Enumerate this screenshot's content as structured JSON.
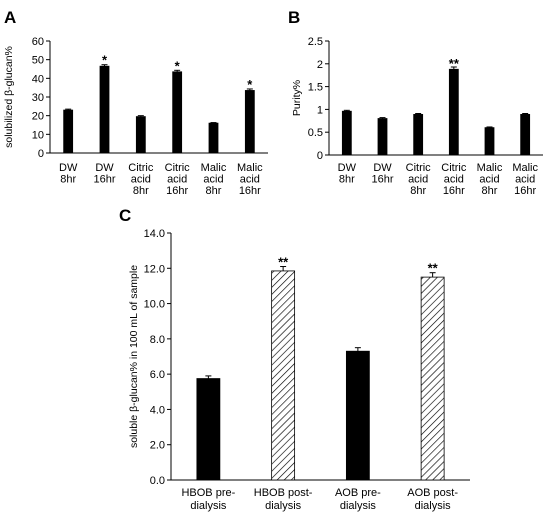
{
  "chart_data": [
    {
      "type": "bar",
      "panel": "A",
      "ylabel": "solubilized β-glucan%",
      "ylim": [
        0,
        60
      ],
      "yticks": [
        0,
        10,
        20,
        30,
        40,
        50,
        60
      ],
      "categories": [
        [
          "DW",
          "8hr"
        ],
        [
          "DW",
          "16hr"
        ],
        [
          "Citric",
          "acid",
          "8hr"
        ],
        [
          "Citric",
          "acid",
          "16hr"
        ],
        [
          "Malic",
          "acid",
          "8hr"
        ],
        [
          "Malic",
          "acid",
          "16hr"
        ]
      ],
      "values": [
        23,
        46.5,
        19.5,
        43.5,
        16,
        33.5
      ],
      "errors": [
        0.5,
        0.8,
        0.5,
        0.8,
        0.3,
        0.8
      ],
      "annotations": [
        "",
        "*",
        "",
        "*",
        "",
        "*"
      ],
      "fill": "solid",
      "color": "#000000"
    },
    {
      "type": "bar",
      "panel": "B",
      "ylabel": "Purity%",
      "ylim": [
        0,
        2.5
      ],
      "yticks": [
        "0",
        "0.5",
        "1",
        "1.5",
        "2",
        "2.5"
      ],
      "categories": [
        [
          "DW",
          "8hr"
        ],
        [
          "DW",
          "16hr"
        ],
        [
          "Citric",
          "acid",
          "8hr"
        ],
        [
          "Citric",
          "acid",
          "16hr"
        ],
        [
          "Malic",
          "acid",
          "8hr"
        ],
        [
          "Malic",
          "acid",
          "16hr"
        ]
      ],
      "values": [
        0.96,
        0.8,
        0.89,
        1.88,
        0.6,
        0.89
      ],
      "errors": [
        0.02,
        0.02,
        0.02,
        0.05,
        0.015,
        0.02
      ],
      "annotations": [
        "",
        "",
        "",
        "**",
        "",
        ""
      ],
      "fill": "solid",
      "color": "#000000"
    },
    {
      "type": "bar",
      "panel": "C",
      "ylabel": "soluble β-glucan% in 100 mL of sample",
      "ylim": [
        0,
        14
      ],
      "yticks": [
        "0.0",
        "2.0",
        "4.0",
        "6.0",
        "8.0",
        "10.0",
        "12.0",
        "14.0"
      ],
      "categories": [
        [
          "HBOB pre-",
          "dialysis"
        ],
        [
          "HBOB post-",
          "dialysis"
        ],
        [
          "AOB pre-",
          "dialysis"
        ],
        [
          "AOB post-",
          "dialysis"
        ]
      ],
      "values": [
        5.75,
        11.85,
        7.3,
        11.5
      ],
      "errors": [
        0.15,
        0.25,
        0.2,
        0.25
      ],
      "annotations": [
        "",
        "**",
        "",
        "**"
      ],
      "fills": [
        "solid",
        "hatched",
        "solid",
        "hatched"
      ],
      "color": "#000000"
    }
  ]
}
